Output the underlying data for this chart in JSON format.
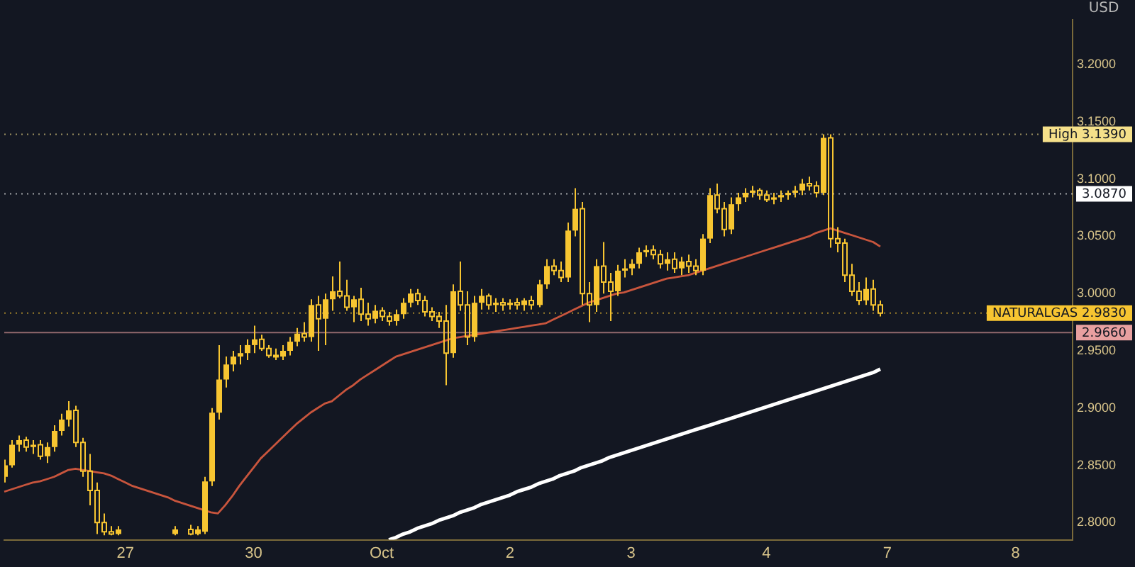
{
  "chart_data": {
    "type": "candlestick",
    "ylabel": "USD",
    "color": "#f7c531",
    "categories": [
      null,
      null,
      null,
      null,
      null,
      null,
      null,
      null,
      null,
      null,
      null,
      null,
      null,
      null,
      null,
      null,
      null,
      "27",
      null,
      null,
      null,
      null,
      null,
      null,
      null,
      null,
      null,
      null,
      null,
      null,
      null,
      null,
      null,
      null,
      null,
      "30",
      null,
      null,
      null,
      null,
      null,
      null,
      null,
      null,
      null,
      null,
      null,
      null,
      null,
      null,
      null,
      null,
      null,
      "Oct",
      null,
      null,
      null,
      null,
      null,
      null,
      null,
      null,
      null,
      null,
      null,
      null,
      null,
      null,
      null,
      null,
      null,
      "2",
      null,
      null,
      null,
      null,
      null,
      null,
      null,
      null,
      null,
      null,
      null,
      null,
      null,
      null,
      null,
      null,
      "3",
      null,
      null,
      null,
      null,
      null,
      null,
      null,
      null,
      null,
      null,
      null,
      null,
      null,
      null,
      null,
      null,
      null,
      null,
      "4",
      null,
      null,
      null,
      null,
      null,
      null,
      null,
      null,
      null,
      null,
      null,
      null,
      null,
      null,
      null,
      null,
      "7",
      null,
      null,
      null,
      null,
      null,
      null,
      null,
      null,
      null,
      null,
      null,
      null,
      null,
      null,
      null,
      null,
      null,
      "8",
      null,
      null,
      null,
      null,
      null,
      null,
      null,
      null
    ],
    "ohlc": [
      [
        2.84,
        2.855,
        2.835,
        2.85
      ],
      [
        2.85,
        2.872,
        2.848,
        2.868
      ],
      [
        2.868,
        2.876,
        2.862,
        2.872
      ],
      [
        2.872,
        2.875,
        2.862,
        2.866
      ],
      [
        2.866,
        2.872,
        2.86,
        2.868
      ],
      [
        2.868,
        2.872,
        2.855,
        2.858
      ],
      [
        2.858,
        2.87,
        2.852,
        2.866
      ],
      [
        2.866,
        2.885,
        2.862,
        2.88
      ],
      [
        2.88,
        2.895,
        2.876,
        2.89
      ],
      [
        2.89,
        2.906,
        2.884,
        2.898
      ],
      [
        2.898,
        2.902,
        2.866,
        2.87
      ],
      [
        2.87,
        2.874,
        2.84,
        2.845
      ],
      [
        2.845,
        2.86,
        2.815,
        2.828
      ],
      [
        2.828,
        2.835,
        2.79,
        2.8
      ],
      [
        2.8,
        2.808,
        2.789,
        2.792
      ],
      [
        2.792,
        2.797,
        2.789,
        2.79
      ],
      [
        2.79,
        2.797,
        2.789,
        2.794
      ],
      null,
      null,
      null,
      null,
      null,
      null,
      null,
      [
        2.79,
        2.797,
        2.789,
        2.794
      ],
      null,
      [
        2.794,
        2.798,
        2.789,
        2.79
      ],
      [
        2.79,
        2.797,
        2.789,
        2.794
      ],
      [
        2.792,
        2.84,
        2.79,
        2.836
      ],
      [
        2.836,
        2.9,
        2.832,
        2.896
      ],
      [
        2.896,
        2.955,
        2.89,
        2.925
      ],
      [
        2.925,
        2.945,
        2.918,
        2.938
      ],
      [
        2.938,
        2.95,
        2.932,
        2.945
      ],
      [
        2.945,
        2.955,
        2.938,
        2.948
      ],
      [
        2.948,
        2.96,
        2.942,
        2.955
      ],
      [
        2.955,
        2.972,
        2.948,
        2.96
      ],
      [
        2.96,
        2.964,
        2.95,
        2.952
      ],
      [
        2.952,
        2.955,
        2.944,
        2.946
      ],
      [
        2.946,
        2.952,
        2.942,
        2.945
      ],
      [
        2.945,
        2.955,
        2.942,
        2.95
      ],
      [
        2.95,
        2.962,
        2.946,
        2.958
      ],
      [
        2.958,
        2.97,
        2.954,
        2.965
      ],
      [
        2.965,
        2.975,
        2.958,
        2.962
      ],
      [
        2.962,
        2.995,
        2.958,
        2.99
      ],
      [
        2.99,
        2.998,
        2.95,
        2.978
      ],
      [
        2.978,
        3.0,
        2.955,
        2.995
      ],
      [
        2.995,
        3.015,
        2.985,
        3.002
      ],
      [
        3.002,
        3.028,
        2.996,
        2.998
      ],
      [
        2.998,
        3.012,
        2.985,
        2.988
      ],
      [
        2.988,
        2.998,
        2.975,
        2.995
      ],
      [
        2.995,
        3.005,
        2.976,
        2.982
      ],
      [
        2.982,
        2.992,
        2.972,
        2.978
      ],
      [
        2.978,
        2.99,
        2.974,
        2.985
      ],
      [
        2.985,
        2.988,
        2.976,
        2.98
      ],
      [
        2.98,
        2.984,
        2.972,
        2.976
      ],
      [
        2.976,
        2.986,
        2.972,
        2.982
      ],
      [
        2.982,
        2.996,
        2.978,
        2.992
      ],
      [
        2.992,
        3.004,
        2.988,
        3.0
      ],
      [
        3.0,
        3.004,
        2.99,
        2.994
      ],
      [
        2.994,
        2.998,
        2.98,
        2.984
      ],
      [
        2.984,
        2.988,
        2.976,
        2.98
      ],
      [
        2.98,
        2.984,
        2.97,
        2.976
      ],
      [
        2.976,
        2.99,
        2.92,
        2.948
      ],
      [
        2.948,
        3.008,
        2.944,
        3.002
      ],
      [
        3.002,
        3.028,
        2.985,
        2.99
      ],
      [
        2.99,
        3.002,
        2.955,
        2.962
      ],
      [
        2.962,
        2.998,
        2.958,
        2.992
      ],
      [
        2.992,
        3.004,
        2.986,
        2.998
      ],
      [
        2.998,
        3.0,
        2.986,
        2.99
      ],
      [
        2.99,
        2.996,
        2.984,
        2.992
      ],
      [
        2.992,
        2.996,
        2.985,
        2.99
      ],
      [
        2.99,
        2.995,
        2.986,
        2.992
      ],
      [
        2.992,
        2.996,
        2.986,
        2.99
      ],
      [
        2.99,
        2.996,
        2.985,
        2.994
      ],
      [
        2.994,
        2.998,
        2.986,
        2.99
      ],
      [
        2.99,
        3.012,
        2.988,
        3.008
      ],
      [
        3.008,
        3.03,
        3.004,
        3.024
      ],
      [
        3.024,
        3.03,
        3.016,
        3.02
      ],
      [
        3.02,
        3.028,
        3.01,
        3.014
      ],
      [
        3.014,
        3.062,
        3.01,
        3.055
      ],
      [
        3.055,
        3.092,
        3.05,
        3.074
      ],
      [
        3.074,
        3.08,
        2.99,
        3.0
      ],
      [
        3.0,
        3.01,
        2.975,
        2.99
      ],
      [
        2.99,
        3.03,
        2.984,
        3.024
      ],
      [
        3.024,
        3.045,
        3.0,
        3.01
      ],
      [
        3.01,
        3.018,
        2.976,
        3.002
      ],
      [
        3.002,
        3.025,
        2.998,
        3.02
      ],
      [
        3.02,
        3.03,
        3.014,
        3.022
      ],
      [
        3.022,
        3.03,
        3.016,
        3.026
      ],
      [
        3.026,
        3.04,
        3.022,
        3.036
      ],
      [
        3.036,
        3.042,
        3.032,
        3.038
      ],
      [
        3.038,
        3.042,
        3.03,
        3.034
      ],
      [
        3.034,
        3.038,
        3.022,
        3.026
      ],
      [
        3.026,
        3.036,
        3.02,
        3.03
      ],
      [
        3.03,
        3.036,
        3.018,
        3.022
      ],
      [
        3.022,
        3.032,
        3.016,
        3.028
      ],
      [
        3.028,
        3.034,
        3.018,
        3.024
      ],
      [
        3.024,
        3.03,
        3.016,
        3.02
      ],
      [
        3.02,
        3.052,
        3.016,
        3.048
      ],
      [
        3.048,
        3.092,
        3.044,
        3.086
      ],
      [
        3.086,
        3.096,
        3.07,
        3.074
      ],
      [
        3.074,
        3.08,
        3.05,
        3.056
      ],
      [
        3.056,
        3.084,
        3.052,
        3.078
      ],
      [
        3.078,
        3.088,
        3.072,
        3.084
      ],
      [
        3.084,
        3.092,
        3.08,
        3.088
      ],
      [
        3.088,
        3.094,
        3.084,
        3.09
      ],
      [
        3.09,
        3.092,
        3.082,
        3.086
      ],
      [
        3.086,
        3.09,
        3.08,
        3.082
      ],
      [
        3.082,
        3.088,
        3.078,
        3.084
      ],
      [
        3.084,
        3.09,
        3.08,
        3.086
      ],
      [
        3.086,
        3.09,
        3.082,
        3.088
      ],
      [
        3.088,
        3.094,
        3.084,
        3.09
      ],
      [
        3.09,
        3.1,
        3.086,
        3.096
      ],
      [
        3.096,
        3.102,
        3.09,
        3.094
      ],
      [
        3.094,
        3.098,
        3.084,
        3.088
      ],
      [
        3.088,
        3.139,
        3.086,
        3.136
      ],
      [
        3.136,
        3.139,
        3.04,
        3.048
      ],
      [
        3.048,
        3.058,
        3.036,
        3.044
      ],
      [
        3.044,
        3.048,
        3.01,
        3.016
      ],
      [
        3.016,
        3.026,
        2.998,
        3.002
      ],
      [
        3.002,
        3.01,
        2.99,
        2.994
      ],
      [
        2.994,
        3.014,
        2.99,
        3.004
      ],
      [
        3.004,
        3.012,
        2.985,
        2.99
      ],
      [
        2.99,
        2.994,
        2.98,
        2.983
      ],
      null,
      null,
      null,
      null,
      null,
      null,
      null,
      null,
      null,
      null,
      null,
      null,
      null,
      null,
      null,
      null,
      null,
      null,
      null,
      null,
      null,
      null,
      null,
      null,
      null,
      null,
      null
    ],
    "series": [
      {
        "type": "line",
        "color": "#c8553d",
        "values": [
          2.827,
          2.829,
          2.831,
          2.833,
          2.835,
          2.836,
          2.838,
          2.84,
          2.843,
          2.846,
          2.847,
          2.846,
          2.845,
          2.844,
          2.843,
          2.841,
          2.838,
          2.835,
          2.832,
          2.83,
          2.828,
          2.826,
          2.824,
          2.822,
          2.819,
          2.817,
          2.815,
          2.813,
          2.811,
          2.809,
          2.808,
          2.815,
          2.823,
          2.832,
          2.84,
          2.848,
          2.856,
          2.862,
          2.868,
          2.874,
          2.88,
          2.886,
          2.891,
          2.896,
          2.9,
          2.904,
          2.906,
          2.911,
          2.916,
          2.92,
          2.925,
          2.929,
          2.933,
          2.937,
          2.941,
          2.945,
          2.947,
          2.949,
          2.951,
          2.953,
          2.955,
          2.957,
          2.959,
          2.961,
          2.962,
          2.963,
          2.964,
          2.965,
          2.966,
          2.967,
          2.968,
          2.969,
          2.97,
          2.971,
          2.972,
          2.973,
          2.974,
          2.977,
          2.98,
          2.983,
          2.986,
          2.989,
          2.992,
          2.994,
          2.996,
          2.998,
          3.0,
          3.001,
          3.003,
          3.005,
          3.007,
          3.009,
          3.011,
          3.013,
          3.014,
          3.015,
          3.016,
          3.018,
          3.02,
          3.022,
          3.024,
          3.026,
          3.028,
          3.03,
          3.032,
          3.034,
          3.036,
          3.038,
          3.04,
          3.042,
          3.044,
          3.046,
          3.048,
          3.05,
          3.053,
          3.055,
          3.057,
          3.055,
          3.053,
          3.051,
          3.049,
          3.047,
          3.045,
          3.041,
          null,
          null,
          null,
          null,
          null,
          null,
          null,
          null,
          null,
          null,
          null,
          null,
          null,
          null,
          null,
          null,
          null,
          null,
          null,
          null,
          null,
          null,
          null,
          null,
          null,
          null,
          null
        ]
      },
      {
        "type": "line",
        "color": "#ffffff",
        "values": [
          null,
          null,
          null,
          null,
          null,
          null,
          null,
          null,
          null,
          null,
          null,
          null,
          null,
          null,
          null,
          null,
          null,
          null,
          null,
          null,
          null,
          null,
          null,
          null,
          null,
          null,
          null,
          null,
          null,
          null,
          null,
          null,
          null,
          null,
          null,
          null,
          null,
          null,
          null,
          null,
          null,
          null,
          null,
          null,
          null,
          null,
          null,
          null,
          null,
          null,
          null,
          null,
          null,
          null,
          2.785,
          2.787,
          2.79,
          2.792,
          2.795,
          2.797,
          2.799,
          2.802,
          2.804,
          2.806,
          2.809,
          2.811,
          2.813,
          2.816,
          2.818,
          2.82,
          2.822,
          2.824,
          2.827,
          2.829,
          2.831,
          2.834,
          2.836,
          2.838,
          2.841,
          2.843,
          2.845,
          2.848,
          2.85,
          2.852,
          2.854,
          2.857,
          2.859,
          2.861,
          2.863,
          2.865,
          2.867,
          2.869,
          2.871,
          2.873,
          2.875,
          2.877,
          2.879,
          2.881,
          2.883,
          2.885,
          2.887,
          2.889,
          2.891,
          2.893,
          2.895,
          2.897,
          2.899,
          2.901,
          2.903,
          2.905,
          2.907,
          2.909,
          2.911,
          2.913,
          2.915,
          2.917,
          2.919,
          2.921,
          2.923,
          2.925,
          2.927,
          2.929,
          2.931,
          2.934,
          null,
          null,
          null,
          null,
          null,
          null,
          null,
          null,
          null,
          null,
          null,
          null,
          null,
          null,
          null,
          null,
          null,
          null,
          null,
          null,
          null,
          null,
          null,
          null,
          null,
          null,
          null
        ]
      }
    ],
    "ylim": [
      2.785,
      3.239
    ],
    "yticks": [
      {
        "value": 2.8,
        "label": "2.8000"
      },
      {
        "value": 2.85,
        "label": "2.8500"
      },
      {
        "value": 2.9,
        "label": "2.9000"
      },
      {
        "value": 2.95,
        "label": "2.9500"
      },
      {
        "value": 3.0,
        "label": "3.0000"
      },
      {
        "value": 3.05,
        "label": "3.0500"
      },
      {
        "value": 3.1,
        "label": "3.1000"
      },
      {
        "value": 3.15,
        "label": "3.1500"
      },
      {
        "value": 3.2,
        "label": "3.2000"
      }
    ],
    "ref_lines": [
      {
        "axis": "y",
        "value": 3.139,
        "label": "High 3.1390",
        "color": "#f5e08a",
        "line_style": "dotted"
      },
      {
        "axis": "y",
        "value": 3.087,
        "label": "3.0870",
        "color": "#ffffff",
        "line_style": "dotted"
      },
      {
        "axis": "y",
        "value": 2.983,
        "label": "NATURALGAS 2.9830",
        "color": "#f7c531",
        "line_style": "dotted"
      },
      {
        "axis": "y",
        "value": 2.966,
        "label": "2.9660",
        "color": "#e8a0a0",
        "line_style": "solid"
      }
    ],
    "grid": false,
    "legend": false
  }
}
